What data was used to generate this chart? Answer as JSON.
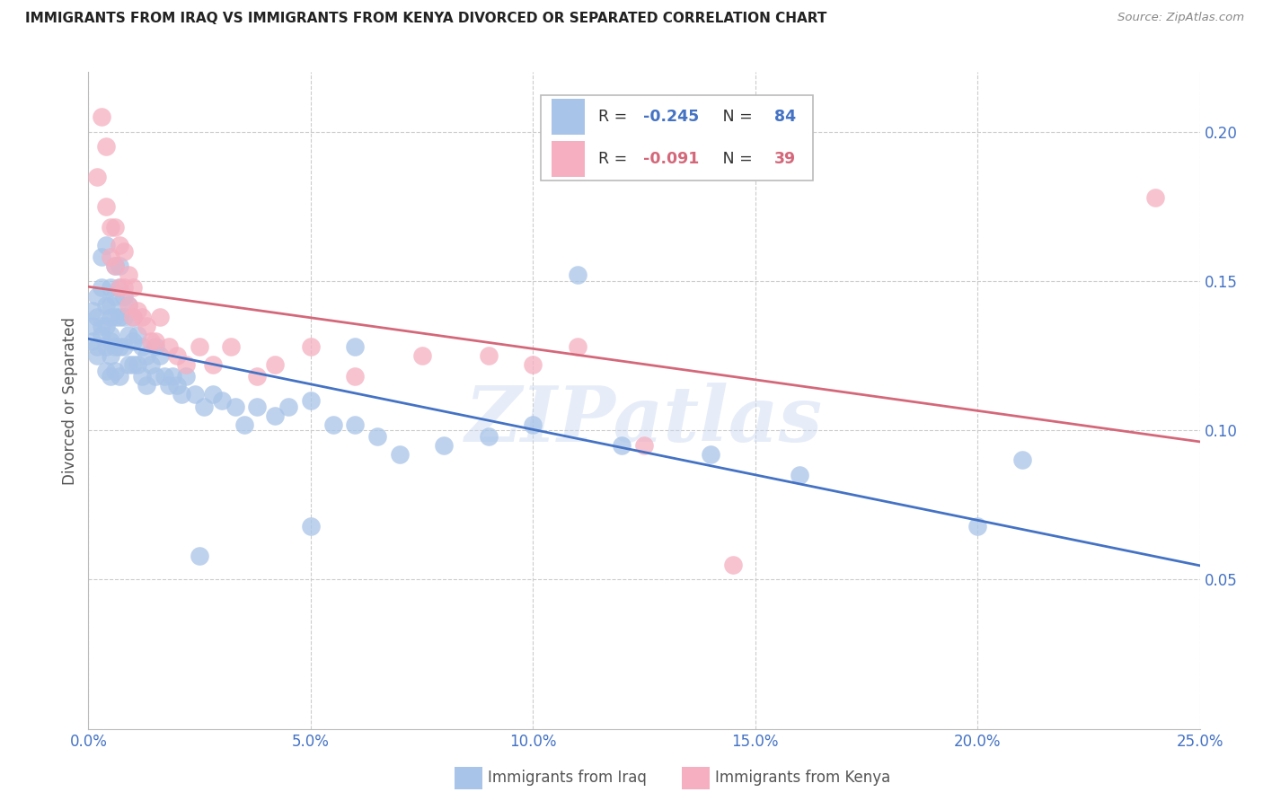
{
  "title": "IMMIGRANTS FROM IRAQ VS IMMIGRANTS FROM KENYA DIVORCED OR SEPARATED CORRELATION CHART",
  "source": "Source: ZipAtlas.com",
  "ylabel": "Divorced or Separated",
  "xlim": [
    0.0,
    0.25
  ],
  "ylim": [
    0.0,
    0.22
  ],
  "xticks": [
    0.0,
    0.05,
    0.1,
    0.15,
    0.2,
    0.25
  ],
  "yticks": [
    0.05,
    0.1,
    0.15,
    0.2
  ],
  "iraq_color": "#a8c4e8",
  "kenya_color": "#f5afc0",
  "iraq_line_color": "#4472c4",
  "kenya_line_color": "#d4687a",
  "iraq_R": "-0.245",
  "iraq_N": "84",
  "kenya_R": "-0.091",
  "kenya_N": "39",
  "watermark": "ZIPatlas",
  "iraq_x": [
    0.001,
    0.001,
    0.001,
    0.002,
    0.002,
    0.002,
    0.002,
    0.003,
    0.003,
    0.003,
    0.003,
    0.004,
    0.004,
    0.004,
    0.004,
    0.004,
    0.005,
    0.005,
    0.005,
    0.005,
    0.005,
    0.005,
    0.005,
    0.006,
    0.006,
    0.006,
    0.006,
    0.006,
    0.007,
    0.007,
    0.007,
    0.007,
    0.007,
    0.008,
    0.008,
    0.008,
    0.009,
    0.009,
    0.009,
    0.01,
    0.01,
    0.01,
    0.011,
    0.011,
    0.012,
    0.012,
    0.013,
    0.013,
    0.014,
    0.015,
    0.015,
    0.016,
    0.017,
    0.018,
    0.019,
    0.02,
    0.021,
    0.022,
    0.024,
    0.026,
    0.028,
    0.03,
    0.033,
    0.035,
    0.038,
    0.042,
    0.045,
    0.05,
    0.055,
    0.06,
    0.065,
    0.07,
    0.08,
    0.09,
    0.1,
    0.11,
    0.12,
    0.14,
    0.16,
    0.2,
    0.05,
    0.06,
    0.21,
    0.025
  ],
  "iraq_y": [
    0.13,
    0.14,
    0.135,
    0.125,
    0.145,
    0.138,
    0.128,
    0.132,
    0.158,
    0.148,
    0.135,
    0.162,
    0.142,
    0.135,
    0.128,
    0.12,
    0.148,
    0.138,
    0.13,
    0.125,
    0.118,
    0.142,
    0.132,
    0.155,
    0.145,
    0.138,
    0.128,
    0.12,
    0.155,
    0.148,
    0.138,
    0.128,
    0.118,
    0.145,
    0.138,
    0.128,
    0.142,
    0.132,
    0.122,
    0.138,
    0.13,
    0.122,
    0.132,
    0.122,
    0.128,
    0.118,
    0.125,
    0.115,
    0.122,
    0.128,
    0.118,
    0.125,
    0.118,
    0.115,
    0.118,
    0.115,
    0.112,
    0.118,
    0.112,
    0.108,
    0.112,
    0.11,
    0.108,
    0.102,
    0.108,
    0.105,
    0.108,
    0.11,
    0.102,
    0.128,
    0.098,
    0.092,
    0.095,
    0.098,
    0.102,
    0.152,
    0.095,
    0.092,
    0.085,
    0.068,
    0.068,
    0.102,
    0.09,
    0.058
  ],
  "kenya_x": [
    0.002,
    0.003,
    0.004,
    0.004,
    0.005,
    0.005,
    0.006,
    0.006,
    0.007,
    0.007,
    0.008,
    0.008,
    0.009,
    0.009,
    0.01,
    0.01,
    0.011,
    0.012,
    0.013,
    0.014,
    0.015,
    0.016,
    0.018,
    0.02,
    0.022,
    0.025,
    0.028,
    0.032,
    0.038,
    0.042,
    0.05,
    0.06,
    0.075,
    0.09,
    0.1,
    0.11,
    0.125,
    0.145,
    0.24
  ],
  "kenya_y": [
    0.185,
    0.205,
    0.195,
    0.175,
    0.168,
    0.158,
    0.168,
    0.155,
    0.162,
    0.148,
    0.16,
    0.148,
    0.152,
    0.142,
    0.148,
    0.138,
    0.14,
    0.138,
    0.135,
    0.13,
    0.13,
    0.138,
    0.128,
    0.125,
    0.122,
    0.128,
    0.122,
    0.128,
    0.118,
    0.122,
    0.128,
    0.118,
    0.125,
    0.125,
    0.122,
    0.128,
    0.095,
    0.055,
    0.178
  ]
}
